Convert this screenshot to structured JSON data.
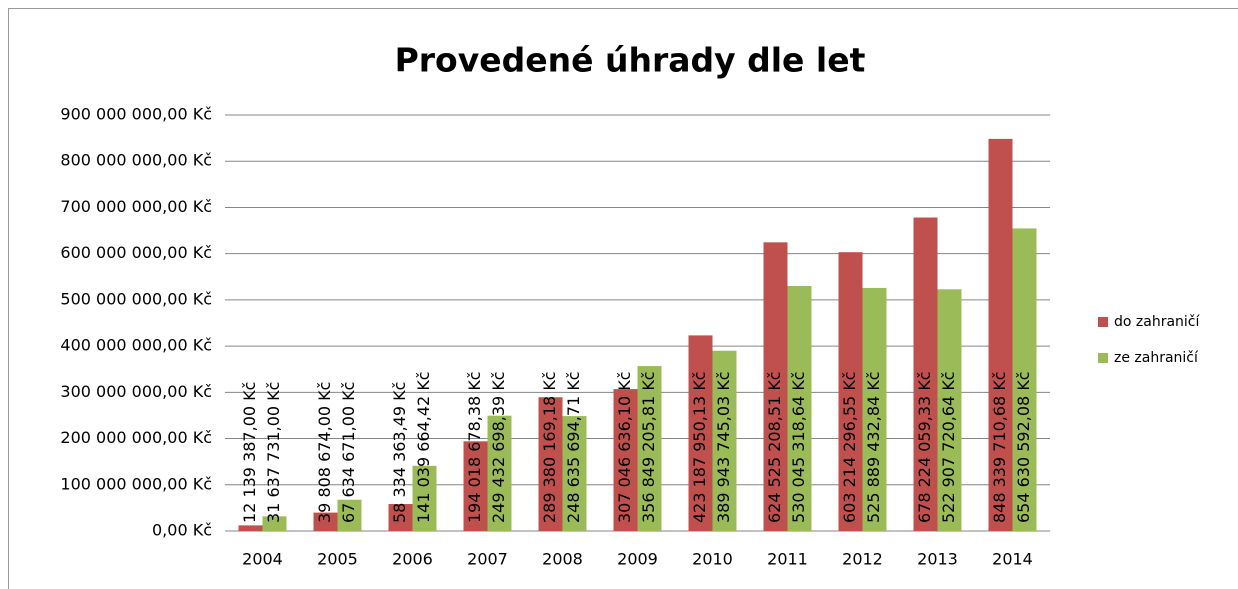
{
  "chart_data": {
    "type": "bar",
    "title": "Provedené úhrady dle let",
    "categories": [
      "2004",
      "2005",
      "2006",
      "2007",
      "2008",
      "2009",
      "2010",
      "2011",
      "2012",
      "2013",
      "2014"
    ],
    "series": [
      {
        "name": "do zahraničí",
        "color": "#c0504d",
        "values": [
          12139387.0,
          39808674.0,
          58334363.49,
          194018678.38,
          289380169.18,
          307046636.1,
          423187950.13,
          624525208.51,
          603214296.55,
          678224059.33,
          848339710.68
        ],
        "value_labels": [
          "12 139 387,00 Kč",
          "39 808 674,00 Kč",
          "58 334 363,49 Kč",
          "194 018 678,38 Kč",
          "289 380 169,18 Kč",
          "307 046 636,10 Kč",
          "423 187 950,13 Kč",
          "624 525 208,51 Kč",
          "603 214 296,55 Kč",
          "678 224 059,33 Kč",
          "848 339 710,68 Kč"
        ]
      },
      {
        "name": "ze zahraničí",
        "color": "#9bbb59",
        "values": [
          31637731.0,
          67634671.0,
          141039664.42,
          249432698.39,
          248635694.71,
          356849205.81,
          389943745.03,
          530045318.64,
          525889432.84,
          522907720.64,
          654630592.08
        ],
        "value_labels": [
          "31 637 731,00 Kč",
          "67 634 671,00 Kč",
          "141 039 664,42 Kč",
          "249 432 698,39 Kč",
          "248 635 694,71 Kč",
          "356 849 205,81 Kč",
          "389 943 745,03 Kč",
          "530 045 318,64 Kč",
          "525 889 432,84 Kč",
          "522 907 720,64 Kč",
          "654 630 592,08 Kč"
        ]
      }
    ],
    "ylim": [
      0,
      900000000
    ],
    "yticks": [
      {
        "value": 0,
        "label": "0,00 Kč"
      },
      {
        "value": 100000000,
        "label": "100 000 000,00 Kč"
      },
      {
        "value": 200000000,
        "label": "200 000 000,00 Kč"
      },
      {
        "value": 300000000,
        "label": "300 000 000,00 Kč"
      },
      {
        "value": 400000000,
        "label": "400 000 000,00 Kč"
      },
      {
        "value": 500000000,
        "label": "500 000 000,00 Kč"
      },
      {
        "value": 600000000,
        "label": "600 000 000,00 Kč"
      },
      {
        "value": 700000000,
        "label": "700 000 000,00 Kč"
      },
      {
        "value": 800000000,
        "label": "800 000 000,00 Kč"
      },
      {
        "value": 900000000,
        "label": "900 000 000,00 Kč"
      }
    ],
    "grid": true,
    "legend": "right"
  }
}
